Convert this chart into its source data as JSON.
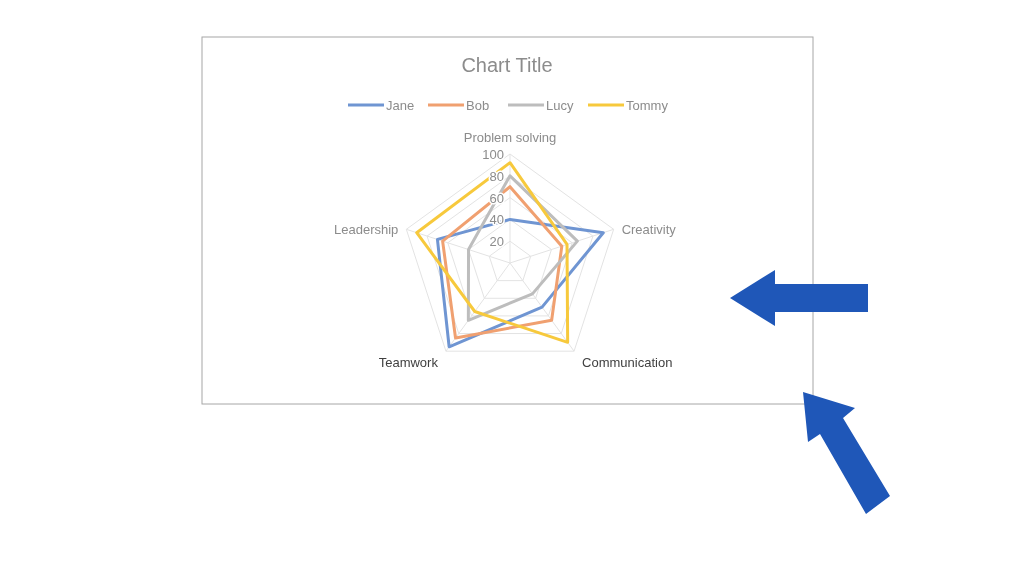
{
  "chart_data": {
    "type": "radar",
    "title": "Chart Title",
    "categories": [
      "Problem solving",
      "Creativity",
      "Communication",
      "Teamwork",
      "Leadership"
    ],
    "series": [
      {
        "name": "Jane",
        "color": "#6f95d2",
        "values": [
          40,
          90,
          50,
          95,
          70
        ]
      },
      {
        "name": "Bob",
        "color": "#f0a070",
        "values": [
          70,
          50,
          65,
          85,
          65
        ]
      },
      {
        "name": "Lucy",
        "color": "#bdbdbd",
        "values": [
          80,
          65,
          35,
          65,
          40
        ]
      },
      {
        "name": "Tommy",
        "color": "#f7c93c",
        "values": [
          92,
          55,
          90,
          55,
          90
        ]
      }
    ],
    "ylim": [
      0,
      100
    ],
    "yticks": [
      20,
      40,
      60,
      80,
      100
    ],
    "grid": true,
    "legend": "top",
    "marker": "none",
    "line_style": "solid"
  }
}
